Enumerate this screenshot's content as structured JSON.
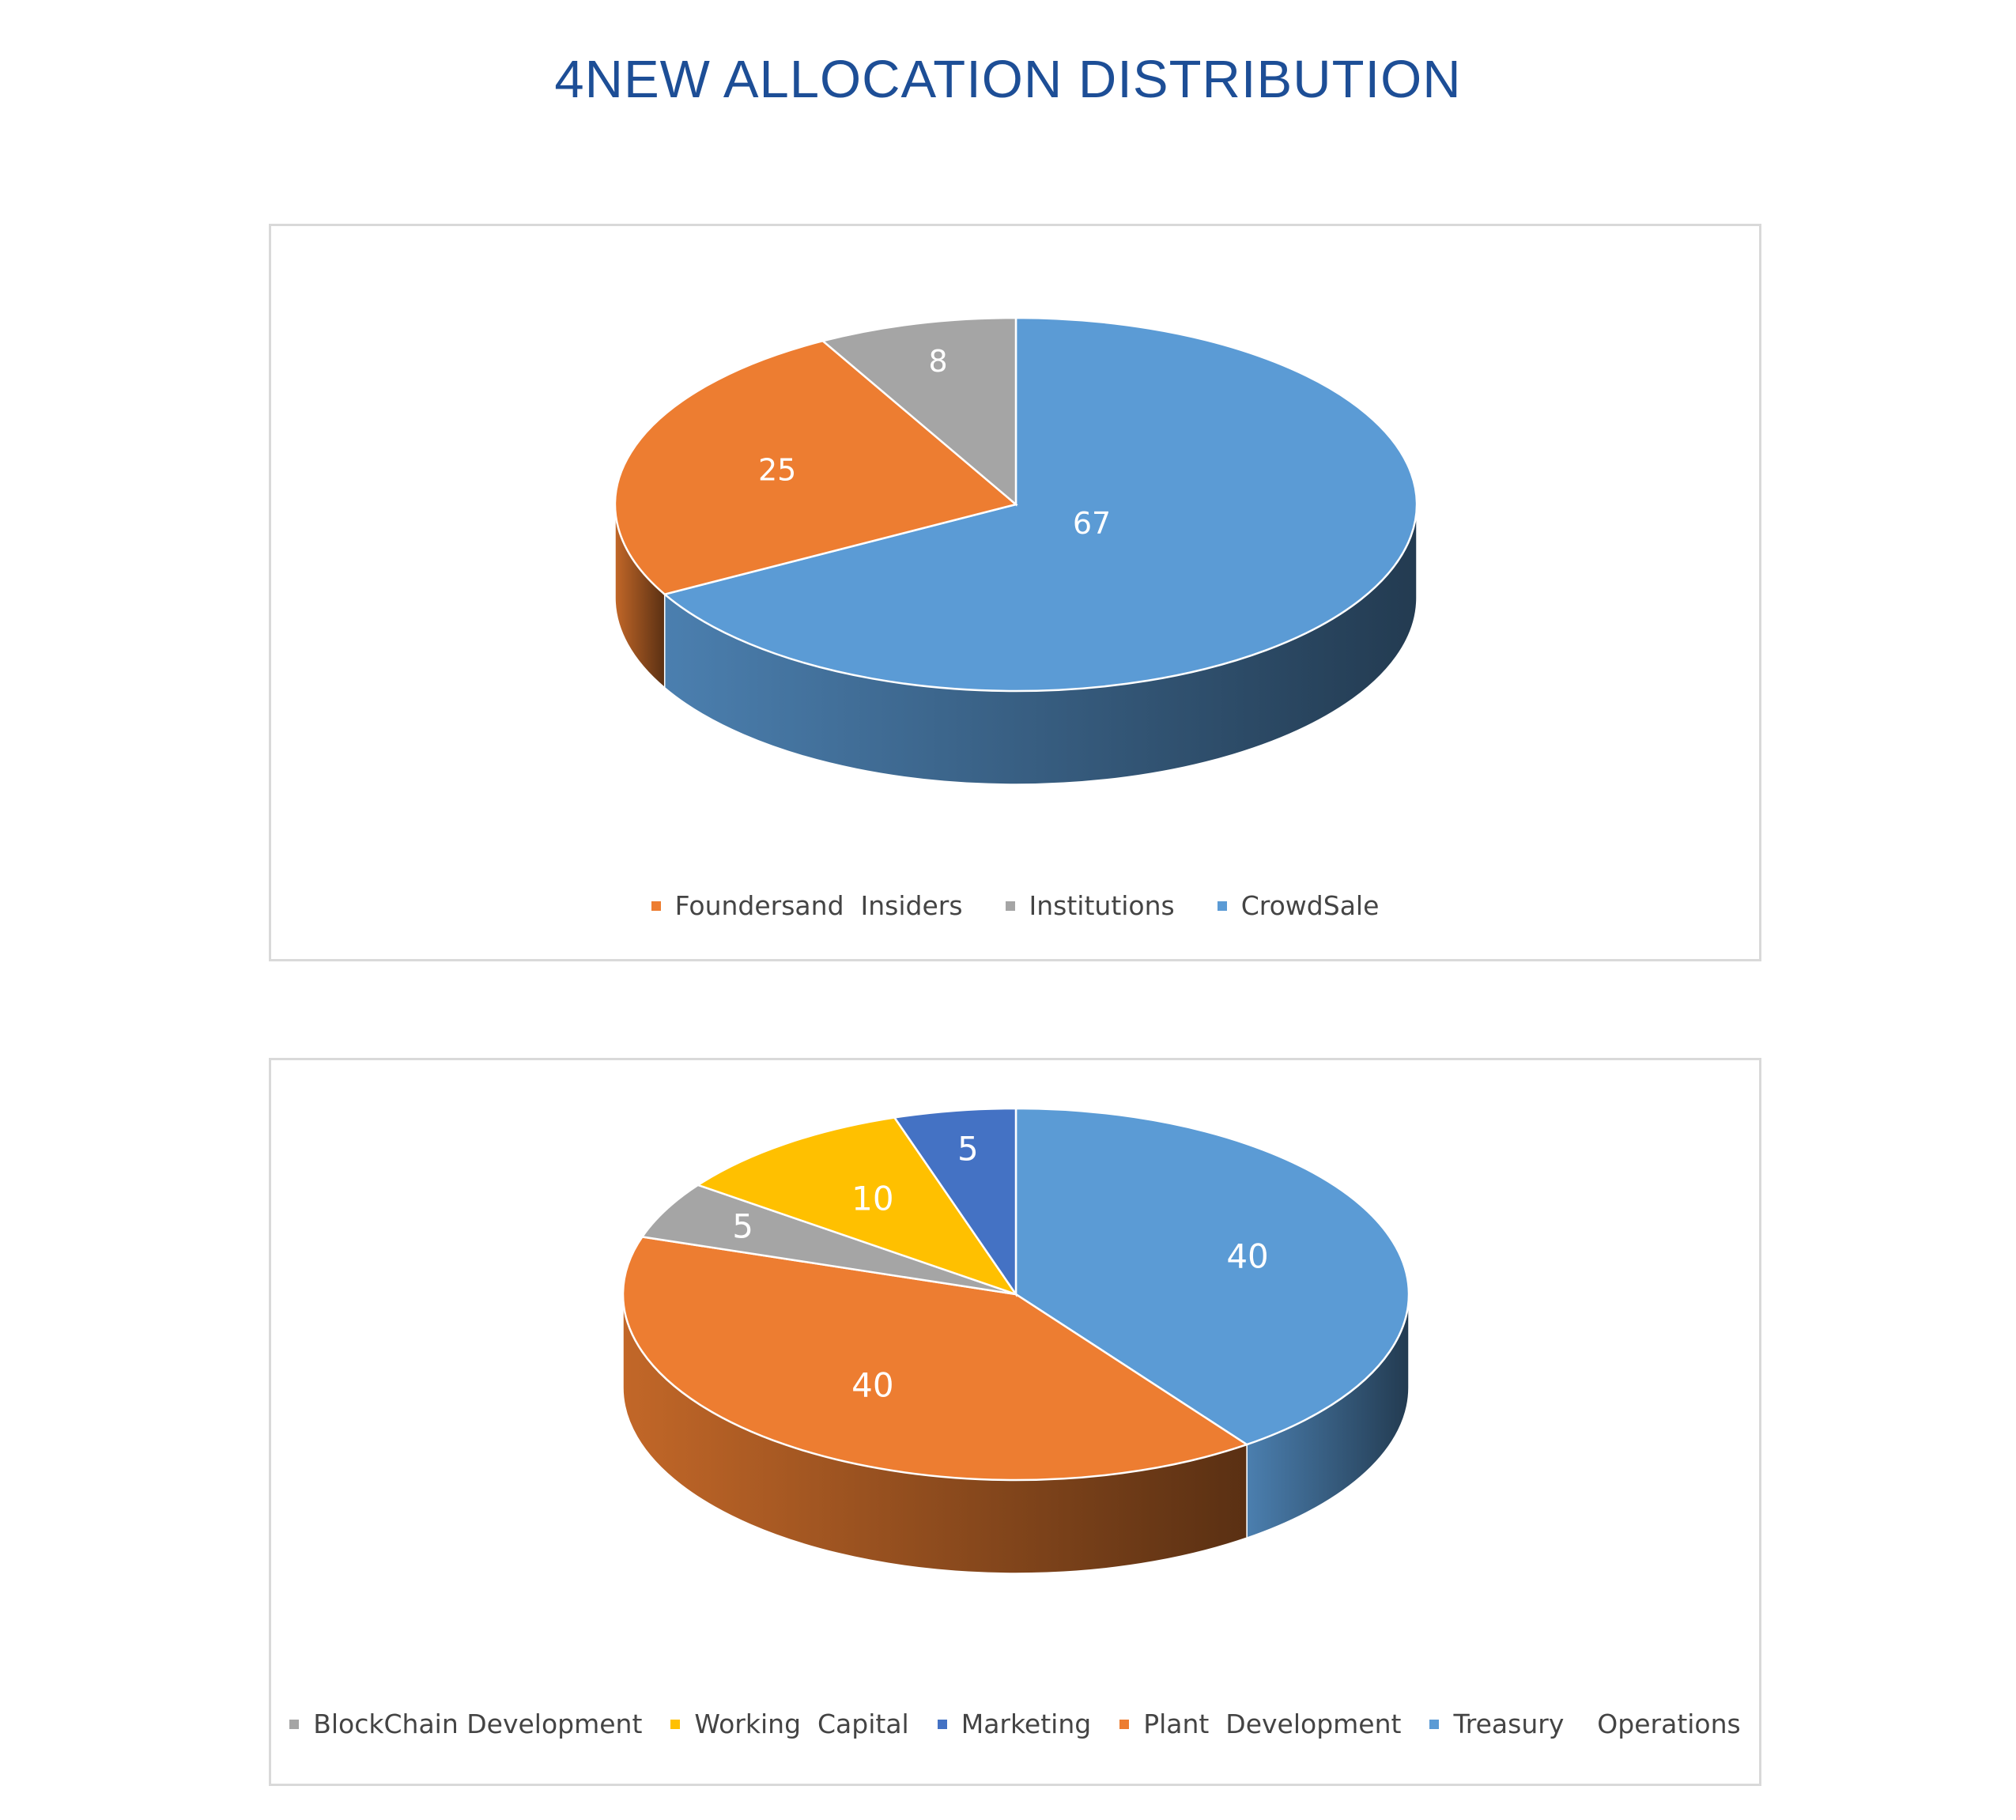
{
  "page": {
    "title": "4NEW ALLOCATION DISTRIBUTION"
  },
  "chart_data": [
    {
      "type": "pie",
      "title": "",
      "label_color": "#ffffff",
      "slices": [
        {
          "label": "CrowdSale",
          "value": 67,
          "color": "#5b9bd5"
        },
        {
          "label": "Foundersand  Insiders",
          "value": 25,
          "color": "#ed7d31"
        },
        {
          "label": "Institutions",
          "value": 8,
          "color": "#a5a5a5"
        }
      ],
      "legend_order": [
        "Foundersand  Insiders",
        "Institutions",
        "CrowdSale"
      ],
      "legend_position": "bottom"
    },
    {
      "type": "pie",
      "title": "",
      "label_color": "#ffffff",
      "slices": [
        {
          "label": "Treasury    Operations",
          "value": 40,
          "color": "#5b9bd5"
        },
        {
          "label": "Plant  Development",
          "value": 40,
          "color": "#ed7d31"
        },
        {
          "label": "BlockChain Development",
          "value": 5,
          "color": "#a5a5a5"
        },
        {
          "label": "Working  Capital",
          "value": 10,
          "color": "#ffc000"
        },
        {
          "label": "Marketing",
          "value": 5,
          "color": "#4472c4"
        }
      ],
      "legend_order": [
        "BlockChain Development",
        "Working  Capital",
        "Marketing",
        "Plant  Development",
        "Treasury    Operations"
      ],
      "legend_position": "bottom"
    }
  ]
}
